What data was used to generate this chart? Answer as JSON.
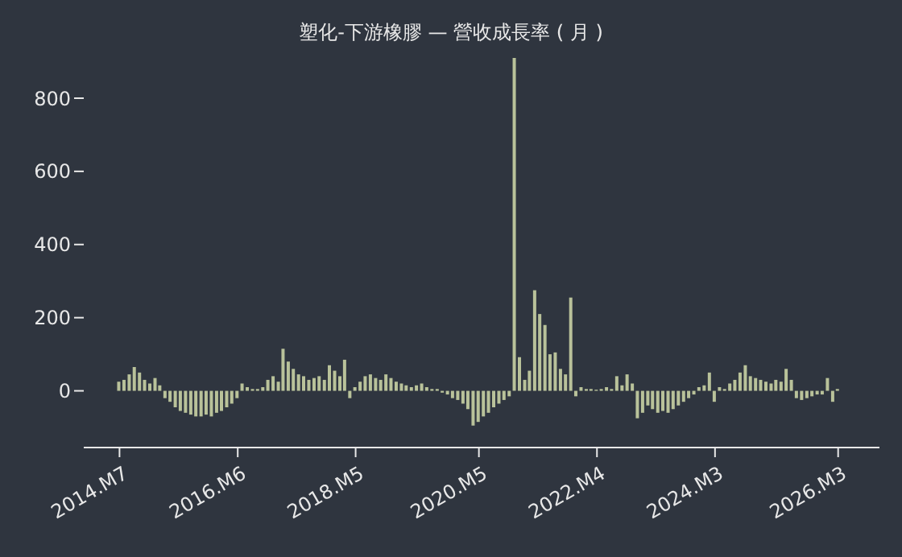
{
  "chart_data": {
    "type": "bar",
    "title": "塑化-下游橡膠 — 營收成長率 ( 月 )",
    "x": [
      "2014-07",
      "2014-08",
      "2014-09",
      "2014-10",
      "2014-11",
      "2014-12",
      "2015-01",
      "2015-02",
      "2015-03",
      "2015-04",
      "2015-05",
      "2015-06",
      "2015-07",
      "2015-08",
      "2015-09",
      "2015-10",
      "2015-11",
      "2015-12",
      "2016-01",
      "2016-02",
      "2016-03",
      "2016-04",
      "2016-05",
      "2016-06",
      "2016-07",
      "2016-08",
      "2016-09",
      "2016-10",
      "2016-11",
      "2016-12",
      "2017-01",
      "2017-02",
      "2017-03",
      "2017-04",
      "2017-05",
      "2017-06",
      "2017-07",
      "2017-08",
      "2017-09",
      "2017-10",
      "2017-11",
      "2017-12",
      "2018-01",
      "2018-02",
      "2018-03",
      "2018-04",
      "2018-05",
      "2018-06",
      "2018-07",
      "2018-08",
      "2018-09",
      "2018-10",
      "2018-11",
      "2018-12",
      "2019-01",
      "2019-02",
      "2019-03",
      "2019-04",
      "2019-05",
      "2019-06",
      "2019-07",
      "2019-08",
      "2019-09",
      "2019-10",
      "2019-11",
      "2019-12",
      "2020-01",
      "2020-02",
      "2020-03",
      "2020-04",
      "2020-05",
      "2020-06",
      "2020-07",
      "2020-08",
      "2020-09",
      "2020-10",
      "2020-11",
      "2020-12",
      "2021-01",
      "2021-02",
      "2021-03",
      "2021-04",
      "2021-05",
      "2021-06",
      "2021-07",
      "2021-08",
      "2021-09",
      "2021-10",
      "2021-11",
      "2021-12",
      "2022-01",
      "2022-02",
      "2022-03",
      "2022-04",
      "2022-05",
      "2022-06",
      "2022-07",
      "2022-08",
      "2022-09",
      "2022-10",
      "2022-11",
      "2022-12",
      "2023-01",
      "2023-02",
      "2023-03",
      "2023-04",
      "2023-05",
      "2023-06",
      "2023-07",
      "2023-08",
      "2023-09",
      "2023-10",
      "2023-11",
      "2023-12",
      "2024-01",
      "2024-02",
      "2024-03",
      "2024-04",
      "2024-05",
      "2024-06",
      "2024-07",
      "2024-08",
      "2024-09",
      "2024-10",
      "2024-11",
      "2024-12",
      "2025-01",
      "2025-02",
      "2025-03",
      "2025-04",
      "2025-05",
      "2025-06",
      "2025-07",
      "2025-08",
      "2025-09",
      "2025-10",
      "2025-11",
      "2025-12",
      "2026-01",
      "2026-02",
      "2026-03"
    ],
    "series": [
      {
        "color": "#b9c29a",
        "values": [
          25,
          30,
          45,
          65,
          50,
          30,
          20,
          35,
          15,
          -20,
          -30,
          -45,
          -55,
          -60,
          -65,
          -70,
          -70,
          -65,
          -70,
          -60,
          -55,
          -45,
          -35,
          -20,
          20,
          10,
          5,
          5,
          10,
          30,
          40,
          25,
          115,
          80,
          60,
          45,
          40,
          30,
          35,
          40,
          30,
          70,
          55,
          40,
          85,
          -20,
          10,
          25,
          40,
          45,
          35,
          30,
          45,
          35,
          25,
          20,
          15,
          10,
          15,
          20,
          10,
          5,
          5,
          -5,
          -10,
          -20,
          -25,
          -35,
          -50,
          -95,
          -85,
          -70,
          -60,
          -45,
          -35,
          -25,
          -15,
          910,
          92,
          30,
          55,
          275,
          210,
          180,
          100,
          105,
          60,
          45,
          255,
          -15,
          10,
          5,
          5,
          3,
          5,
          10,
          5,
          40,
          15,
          45,
          20,
          -75,
          -60,
          -40,
          -50,
          -60,
          -55,
          -60,
          -50,
          -40,
          -30,
          -20,
          -10,
          10,
          15,
          50,
          -30,
          10,
          5,
          20,
          30,
          50,
          70,
          40,
          35,
          30,
          25,
          20,
          30,
          25,
          60,
          30,
          -20,
          -25,
          -20,
          -15,
          -10,
          -10,
          35,
          -30,
          5
        ]
      }
    ],
    "xlim": [
      "2013-12",
      "2026-11"
    ],
    "xticks": [
      {
        "value": "2014-07",
        "label": "2014.M7"
      },
      {
        "value": "2016-06",
        "label": "2016.M6"
      },
      {
        "value": "2018-05",
        "label": "2018.M5"
      },
      {
        "value": "2020-05",
        "label": "2020.M5"
      },
      {
        "value": "2022-04",
        "label": "2022.M4"
      },
      {
        "value": "2024-03",
        "label": "2024.M3"
      },
      {
        "value": "2026-03",
        "label": "2026.M3"
      }
    ],
    "ylim": [
      -155,
      910
    ],
    "yticks": [
      0,
      200,
      400,
      600,
      800
    ],
    "grid": false,
    "legend": false
  }
}
